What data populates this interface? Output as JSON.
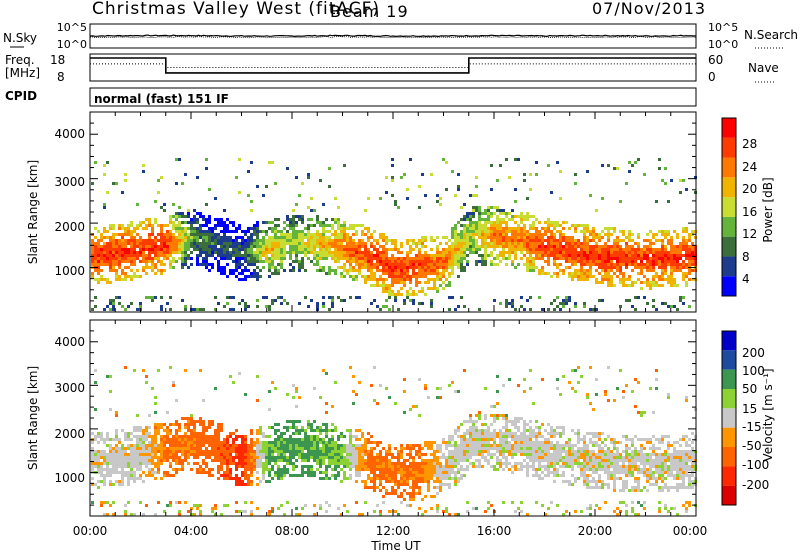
{
  "header": {
    "station": "Christmas Valley West (fitACF)",
    "beam": "Beam 19",
    "date": "07/Nov/2013"
  },
  "top_panels": {
    "noise": {
      "left_label": "N.Sky",
      "right_label": "N.Search",
      "left_ticks": [
        "10^5",
        "10^0"
      ],
      "right_ticks": [
        "10^5",
        "10^0"
      ]
    },
    "freq": {
      "left_label_1": "Freq.",
      "left_label_2": "[MHz]",
      "right_label": "Nave",
      "left_ticks": [
        "18",
        "8"
      ],
      "right_ticks": [
        "60",
        "0"
      ]
    },
    "cpid": {
      "label": "CPID",
      "text": "normal (fast) 151 IF"
    }
  },
  "power_panel": {
    "ylabel": "Slant Range [km]",
    "yticks": [
      "4000",
      "3000",
      "2000",
      "1000"
    ],
    "colorbar_label": "Power [dB]",
    "colorbar_ticks": [
      "28",
      "24",
      "20",
      "16",
      "12",
      "8",
      "4"
    ],
    "colors": [
      "#0000ff",
      "#1e3c8c",
      "#3c6e3c",
      "#64b43c",
      "#c8dc32",
      "#f0b400",
      "#ff7800",
      "#ff3c00",
      "#ff0000"
    ]
  },
  "velocity_panel": {
    "ylabel": "Slant Range [km]",
    "yticks": [
      "4000",
      "3000",
      "2000",
      "1000"
    ],
    "colorbar_label": "Velocity [m s⁻¹]",
    "colorbar_ticks": [
      "200",
      "100",
      "50",
      "15",
      "-15",
      "-50",
      "-100",
      "-200"
    ],
    "colors": [
      "#0000c8",
      "#1e4ba0",
      "#3c9650",
      "#8cd232",
      "#c8c8c8",
      "#ff9600",
      "#ff6400",
      "#ff2800",
      "#dc0000"
    ]
  },
  "xaxis": {
    "label": "Time UT",
    "ticks": [
      "00:00",
      "04:00",
      "08:00",
      "12:00",
      "16:00",
      "20:00",
      "00:00"
    ]
  },
  "chart_data": [
    {
      "type": "line",
      "title": "N.Sky / N.Search",
      "xlabel": "Time UT",
      "x": [
        0,
        2,
        4,
        6,
        8,
        10,
        12,
        14,
        16,
        18,
        20,
        22,
        24
      ],
      "series": [
        {
          "name": "N.Sky",
          "values": [
            2.5,
            2.6,
            2.6,
            2.5,
            2.5,
            2.6,
            2.5,
            2.5,
            2.6,
            2.5,
            2.6,
            2.5,
            2.6
          ]
        },
        {
          "name": "N.Search",
          "values": [
            2.2,
            2.2,
            2.3,
            2.2,
            2.2,
            2.3,
            2.2,
            2.2,
            2.3,
            2.2,
            2.2,
            2.3,
            2.2
          ]
        }
      ],
      "ylim": [
        0,
        5
      ]
    },
    {
      "type": "line",
      "title": "Freq. / Nave",
      "xlabel": "Time UT",
      "x": [
        0,
        3,
        3,
        15,
        15,
        24
      ],
      "series": [
        {
          "name": "Freq.",
          "values": [
            16.5,
            16.5,
            11,
            11,
            16.5,
            16.5
          ]
        },
        {
          "name": "Nave",
          "values": [
            38,
            38,
            30,
            30,
            38,
            38
          ]
        }
      ],
      "ylim": [
        8,
        18
      ]
    },
    {
      "type": "heatmap",
      "title": "Power [dB]",
      "xlabel": "Time UT",
      "ylabel": "Slant Range [km]",
      "xlim": [
        0,
        24
      ],
      "ylim": [
        0,
        4500
      ],
      "x": [
        0,
        1,
        2,
        3,
        4,
        5,
        6,
        7,
        8,
        9,
        10,
        11,
        12,
        13,
        14,
        15,
        16,
        17,
        18,
        19,
        20,
        21,
        22,
        23,
        24
      ],
      "band_center_km": [
        1300,
        1350,
        1450,
        1550,
        1700,
        1550,
        1350,
        1450,
        1600,
        1550,
        1450,
        1300,
        1000,
        1050,
        1150,
        1750,
        1750,
        1650,
        1500,
        1400,
        1300,
        1250,
        1200,
        1250,
        1300
      ],
      "band_peak_db": [
        28,
        28,
        28,
        28,
        12,
        8,
        8,
        20,
        16,
        20,
        24,
        28,
        28,
        28,
        24,
        16,
        24,
        24,
        28,
        28,
        28,
        28,
        28,
        28,
        28
      ]
    },
    {
      "type": "heatmap",
      "title": "Velocity [m s⁻¹]",
      "xlabel": "Time UT",
      "ylabel": "Slant Range [km]",
      "xlim": [
        0,
        24
      ],
      "ylim": [
        0,
        4500
      ],
      "x": [
        0,
        1,
        2,
        3,
        4,
        5,
        6,
        7,
        8,
        9,
        10,
        11,
        12,
        13,
        14,
        15,
        16,
        17,
        18,
        19,
        20,
        21,
        22,
        23,
        24
      ],
      "band_center_km": [
        1300,
        1350,
        1450,
        1550,
        1700,
        1550,
        1350,
        1450,
        1600,
        1550,
        1450,
        1300,
        1000,
        1050,
        1150,
        1750,
        1750,
        1650,
        1500,
        1400,
        1300,
        1250,
        1200,
        1250,
        1300
      ],
      "band_velocity": [
        0,
        0,
        0,
        -60,
        -60,
        -80,
        -120,
        60,
        60,
        60,
        40,
        -60,
        -60,
        -60,
        0,
        0,
        0,
        0,
        0,
        0,
        0,
        0,
        0,
        0,
        0
      ]
    }
  ]
}
